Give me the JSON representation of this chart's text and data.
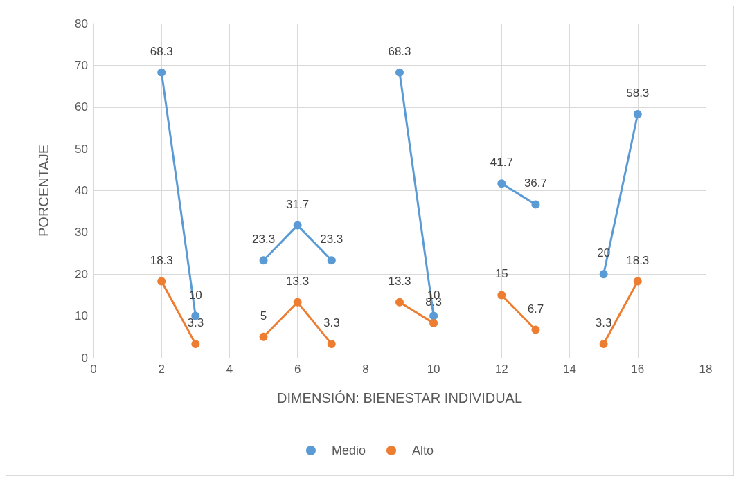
{
  "chart_data": {
    "type": "line",
    "xlabel": "DIMENSIÓN: BIENESTAR INDIVIDUAL",
    "ylabel": "PORCENTAJE",
    "x": [
      2,
      3,
      4,
      5,
      6,
      7,
      8,
      9,
      10,
      11,
      12,
      13,
      14,
      15,
      16
    ],
    "series": [
      {
        "name": "Medio",
        "color": "#5b9bd5",
        "values": [
          68.3,
          10,
          null,
          23.3,
          31.7,
          23.3,
          null,
          68.3,
          10,
          null,
          41.7,
          36.7,
          null,
          20,
          58.3
        ]
      },
      {
        "name": "Alto",
        "color": "#ed7d31",
        "values": [
          18.3,
          3.3,
          null,
          5,
          13.3,
          3.3,
          null,
          13.3,
          8.3,
          null,
          15,
          6.7,
          null,
          3.3,
          18.3
        ]
      }
    ],
    "xlim": [
      0,
      18
    ],
    "xticks": [
      0,
      2,
      4,
      6,
      8,
      10,
      12,
      14,
      16,
      18
    ],
    "ylim": [
      0,
      80
    ],
    "yticks": [
      0,
      10,
      20,
      30,
      40,
      50,
      60,
      70,
      80
    ],
    "grid": true,
    "legend": "bottom",
    "marker": "circle",
    "line_style": "solid",
    "data_labels": true
  }
}
